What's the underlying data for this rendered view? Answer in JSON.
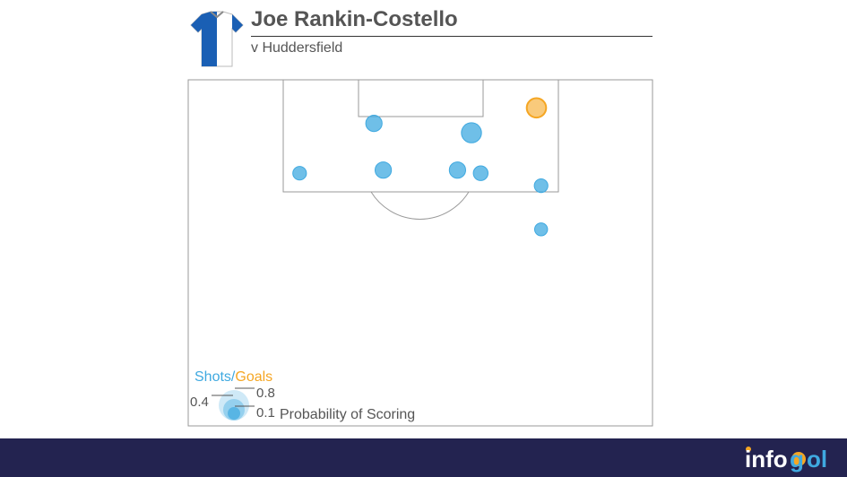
{
  "header": {
    "player_name": "Joe Rankin-Costello",
    "opponent": "v Huddersfield",
    "kit_colors": {
      "primary": "#1a5fb4",
      "secondary": "#ffffff",
      "collar": "#8a8a8a"
    }
  },
  "legend": {
    "shots_label": "Shots",
    "separator": "/",
    "goals_label": "Goals",
    "value_small": "0.1",
    "value_mid": "0.4",
    "value_large": "0.8",
    "caption": "Probability of Scoring"
  },
  "colors": {
    "shot": "#3fa9e0",
    "goal": "#f5a623",
    "pitch_line": "#9a9a9a",
    "footer_bg": "#232350"
  },
  "brand": {
    "logo_icon": "infogol-logo",
    "logo_text": "infogol"
  },
  "chart_data": {
    "type": "scatter",
    "title": "Joe Rankin-Costello",
    "subtitle": "v Huddersfield",
    "pitch_view": "attacking half, goal at top",
    "series": [
      {
        "name": "Shots",
        "points": [
          {
            "x": 0.66,
            "y": 0.83,
            "xg": 0.2
          },
          {
            "x": 0.45,
            "y": 0.86,
            "xg": 0.1
          },
          {
            "x": 0.63,
            "y": 0.71,
            "xg": 0.1
          },
          {
            "x": 0.47,
            "y": 0.71,
            "xg": 0.1
          },
          {
            "x": 0.68,
            "y": 0.7,
            "xg": 0.07
          },
          {
            "x": 0.81,
            "y": 0.66,
            "xg": 0.05
          },
          {
            "x": 0.29,
            "y": 0.7,
            "xg": 0.05
          },
          {
            "x": 0.81,
            "y": 0.52,
            "xg": 0.04
          }
        ]
      },
      {
        "name": "Goals",
        "points": [
          {
            "x": 0.8,
            "y": 0.91,
            "xg": 0.18
          }
        ]
      }
    ],
    "size_legend": [
      0.1,
      0.4,
      0.8
    ]
  }
}
